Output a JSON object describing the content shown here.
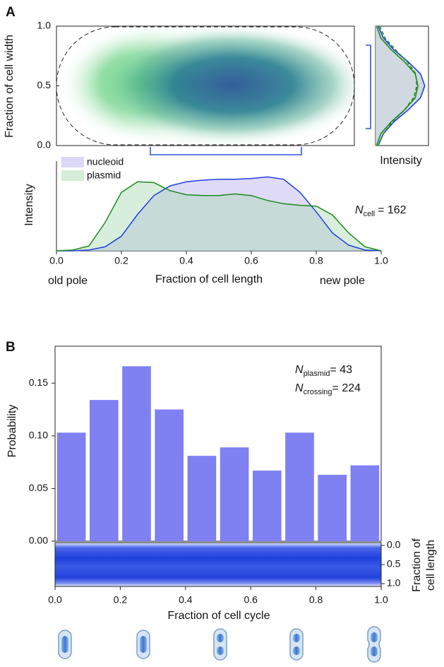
{
  "panel_labels": [
    "A",
    "B"
  ],
  "chart_data": [
    {
      "type": "cell-image",
      "ylabel": "Fraction of cell width",
      "ylim": [
        0,
        1
      ],
      "yticks": [
        {
          "value": 0,
          "label": "0.0"
        },
        {
          "value": 0.5,
          "label": "0.5"
        },
        {
          "value": 1,
          "label": "1.0"
        }
      ]
    },
    {
      "type": "profile",
      "xlabel": "Intensity",
      "xlim": [
        0,
        1
      ],
      "ylim": [
        0,
        1
      ],
      "y": [
        0,
        0.1,
        0.2,
        0.3,
        0.4,
        0.5,
        0.6,
        0.7,
        0.8,
        0.9,
        1
      ],
      "series": [
        {
          "color": "#1f3fe0",
          "fill": "#c6d0d8",
          "values": [
            0.05,
            0.15,
            0.35,
            0.62,
            0.85,
            0.93,
            0.85,
            0.62,
            0.35,
            0.15,
            0.05
          ]
        },
        {
          "color": "#1e8a1e",
          "values": [
            0.02,
            0.1,
            0.3,
            0.55,
            0.75,
            0.8,
            0.75,
            0.55,
            0.3,
            0.1,
            0.02
          ]
        },
        {
          "color": "#1e8a1e",
          "dash": true,
          "values": [
            0.05,
            0.15,
            0.32,
            0.55,
            0.72,
            0.78,
            0.76,
            0.6,
            0.38,
            0.18,
            0.08
          ]
        }
      ]
    },
    {
      "type": "area",
      "ylabel": "Intensity",
      "xlabel": "Fraction of cell length",
      "xlim": [
        0,
        1
      ],
      "ylim": [
        0,
        1
      ],
      "xticks": [
        {
          "value": 0,
          "label": "0.0"
        },
        {
          "value": 0.2,
          "label": "0.2"
        },
        {
          "value": 0.4,
          "label": "0.4"
        },
        {
          "value": 0.6,
          "label": "0.6"
        },
        {
          "value": 0.8,
          "label": "0.8"
        },
        {
          "value": 1,
          "label": "1.0"
        }
      ],
      "x": [
        0,
        0.05,
        0.1,
        0.15,
        0.2,
        0.25,
        0.3,
        0.35,
        0.4,
        0.45,
        0.5,
        0.55,
        0.6,
        0.65,
        0.7,
        0.75,
        0.8,
        0.85,
        0.9,
        0.95,
        1
      ],
      "series": [
        {
          "name": "nucleoid",
          "color": "#1f3fe0",
          "fill": "#b8b0ee",
          "values": [
            0,
            0,
            0.01,
            0.05,
            0.18,
            0.45,
            0.68,
            0.8,
            0.85,
            0.87,
            0.88,
            0.88,
            0.89,
            0.91,
            0.88,
            0.72,
            0.48,
            0.22,
            0.07,
            0.01,
            0
          ]
        },
        {
          "name": "plasmid",
          "color": "#1e8a1e",
          "fill": "#a9dab2",
          "values": [
            0,
            0.01,
            0.06,
            0.35,
            0.72,
            0.85,
            0.84,
            0.74,
            0.69,
            0.68,
            0.68,
            0.7,
            0.68,
            0.62,
            0.58,
            0.56,
            0.55,
            0.44,
            0.22,
            0.05,
            0
          ]
        }
      ],
      "pole_labels": [
        "old pole",
        "new pole"
      ],
      "n_label": {
        "symbol": "N",
        "subscript": "cell",
        "text": "= 162"
      }
    },
    {
      "type": "histogram",
      "ylabel": "Probability",
      "color": "#7f80f2",
      "bins": [
        0,
        0.1,
        0.2,
        0.3,
        0.4,
        0.5,
        0.6,
        0.7,
        0.8,
        0.9,
        1
      ],
      "values": [
        0.103,
        0.134,
        0.166,
        0.125,
        0.081,
        0.089,
        0.067,
        0.103,
        0.063,
        0.072
      ],
      "xlim": [
        0,
        1
      ],
      "ylim": [
        0,
        0.185
      ],
      "xticks": [
        {
          "value": 0,
          "label": "0.0"
        },
        {
          "value": 0.2,
          "label": "0.2"
        },
        {
          "value": 0.4,
          "label": "0.4"
        },
        {
          "value": 0.6,
          "label": "0.6"
        },
        {
          "value": 0.8,
          "label": "0.8"
        },
        {
          "value": 1,
          "label": "1.0"
        }
      ],
      "yticks": [
        {
          "value": 0,
          "label": "0.00"
        },
        {
          "value": 0.05,
          "label": "0.05"
        },
        {
          "value": 0.1,
          "label": "0.10"
        },
        {
          "value": 0.15,
          "label": "0.15"
        }
      ],
      "annotations": [
        {
          "symbol": "N",
          "subscript": "plasmid",
          "text": "= 43"
        },
        {
          "symbol": "N",
          "subscript": "crossing",
          "text": "= 224"
        }
      ]
    },
    {
      "type": "kymograph",
      "xlabel": "Fraction of cell cycle",
      "ylabel": [
        "Fraction of",
        "cell length"
      ],
      "ylim": [
        0,
        1
      ],
      "y_inverted": true,
      "yticks": [
        {
          "value": 0,
          "label": "0.0"
        },
        {
          "value": 0.5,
          "label": "0.5"
        },
        {
          "value": 1,
          "label": "1.0"
        }
      ]
    }
  ]
}
